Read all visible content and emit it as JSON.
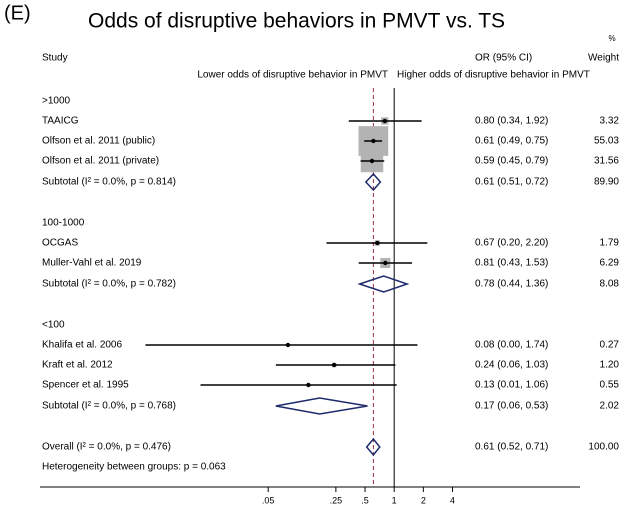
{
  "chart_data": {
    "type": "forest",
    "panel_label": "(E)",
    "title": "Odds of disruptive behaviors in PMVT vs. TS",
    "weight_unit": "%",
    "headers": {
      "study": "Study",
      "effect": "OR (95% CI)",
      "weight": "Weight"
    },
    "direction_labels": {
      "lower": "Lower odds of disruptive behavior in PMVT",
      "higher": "Higher odds of disruptive behavior in PMVT"
    },
    "xscale": "log",
    "xlim": [
      0.00022,
      83
    ],
    "xticks": [
      {
        "value": 0.05,
        "label": ".05"
      },
      {
        "value": 0.25,
        "label": ".25"
      },
      {
        "value": 0.5,
        "label": ".5"
      },
      1,
      2,
      4
    ],
    "null_line": 1,
    "colors": {
      "box": "#b3b3b3",
      "point": "#000000",
      "ci": "#000000",
      "diamond": "#1f2a6b",
      "ref_line": "#9e2a3c",
      "direction": "#2b4a8a"
    },
    "groups": [
      {
        "name": ">1000",
        "studies": [
          {
            "name": "TAAICG",
            "or": 0.8,
            "ci_low": 0.34,
            "ci_high": 1.92,
            "weight": 3.32,
            "effect_label": "0.80 (0.34, 1.92)",
            "weight_label": "3.32"
          },
          {
            "name": "Olfson et al. 2011 (public)",
            "or": 0.61,
            "ci_low": 0.49,
            "ci_high": 0.75,
            "weight": 55.03,
            "effect_label": "0.61 (0.49, 0.75)",
            "weight_label": "55.03"
          },
          {
            "name": "Olfson et al. 2011 (private)",
            "or": 0.59,
            "ci_low": 0.45,
            "ci_high": 0.79,
            "weight": 31.56,
            "effect_label": "0.59 (0.45, 0.79)",
            "weight_label": "31.56"
          }
        ],
        "subtotal": {
          "label": "Subtotal (I² = 0.0%, p = 0.814)",
          "or": 0.61,
          "ci_low": 0.51,
          "ci_high": 0.72,
          "effect_label": "0.61 (0.51, 0.72)",
          "weight_label": "89.90"
        }
      },
      {
        "name": "100-1000",
        "studies": [
          {
            "name": "OCGAS",
            "or": 0.67,
            "ci_low": 0.2,
            "ci_high": 2.2,
            "weight": 1.79,
            "effect_label": "0.67 (0.20, 2.20)",
            "weight_label": "1.79"
          },
          {
            "name": "Muller-Vahl et al. 2019",
            "or": 0.81,
            "ci_low": 0.43,
            "ci_high": 1.53,
            "weight": 6.29,
            "effect_label": "0.81 (0.43, 1.53)",
            "weight_label": "6.29"
          }
        ],
        "subtotal": {
          "label": "Subtotal (I² = 0.0%, p = 0.782)",
          "or": 0.78,
          "ci_low": 0.44,
          "ci_high": 1.36,
          "effect_label": "0.78 (0.44, 1.36)",
          "weight_label": "8.08"
        }
      },
      {
        "name": "<100",
        "studies": [
          {
            "name": "Khalifa et al. 2006",
            "or": 0.08,
            "ci_low": 0.0027,
            "ci_high": 1.74,
            "weight": 0.27,
            "effect_label": "0.08 (0.00, 1.74)",
            "weight_label": "0.27"
          },
          {
            "name": "Kraft et al. 2012",
            "or": 0.24,
            "ci_low": 0.06,
            "ci_high": 1.03,
            "weight": 1.2,
            "effect_label": "0.24 (0.06, 1.03)",
            "weight_label": "1.20"
          },
          {
            "name": "Spencer et al. 1995",
            "or": 0.13,
            "ci_low": 0.01,
            "ci_high": 1.06,
            "weight": 0.55,
            "effect_label": "0.13 (0.01, 1.06)",
            "weight_label": "0.55"
          }
        ],
        "subtotal": {
          "label": "Subtotal (I² = 0.0%, p = 0.768)",
          "or": 0.17,
          "ci_low": 0.06,
          "ci_high": 0.53,
          "effect_label": "0.17 (0.06, 0.53)",
          "weight_label": "2.02"
        }
      }
    ],
    "overall": {
      "label": "Overall (I² = 0.0%, p = 0.476)",
      "or": 0.61,
      "ci_low": 0.52,
      "ci_high": 0.71,
      "effect_label": "0.61 (0.52, 0.71)",
      "weight_label": "100.00"
    },
    "heterogeneity": "Heterogeneity between groups: p = 0.063"
  }
}
